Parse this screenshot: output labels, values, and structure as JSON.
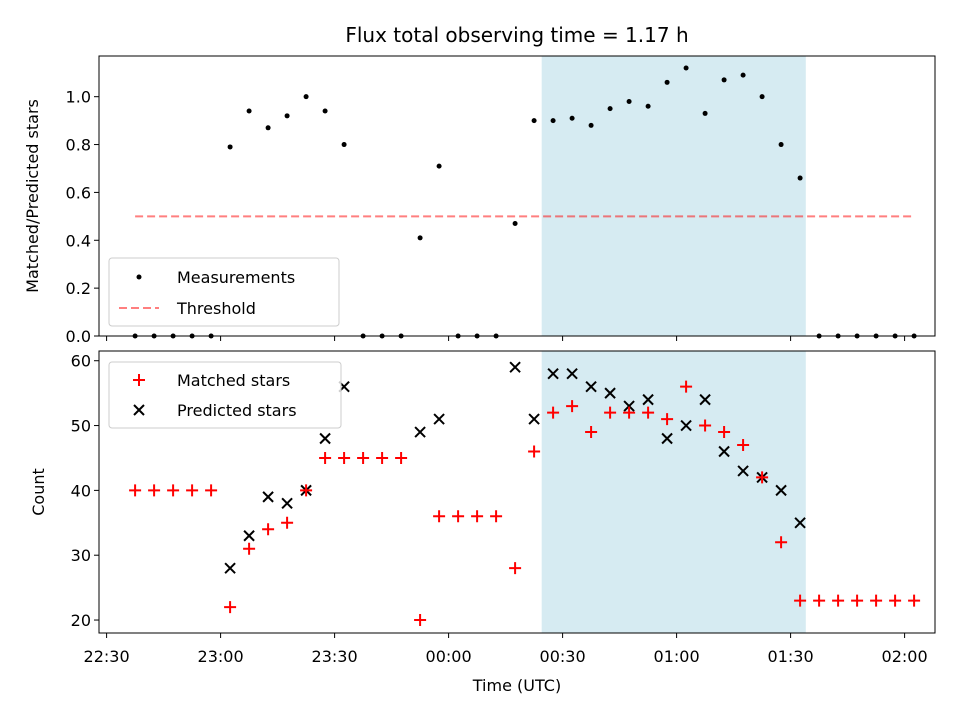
{
  "chart_data": {
    "title": "Flux total observing time = 1.17 h",
    "xlabel": "Time (UTC)",
    "x_tick_labels": [
      "22:30",
      "23:00",
      "23:30",
      "00:00",
      "00:30",
      "01:00",
      "01:30",
      "02:00"
    ],
    "x_tick_minutes": [
      0,
      30,
      60,
      90,
      120,
      150,
      180,
      210
    ],
    "xlim_minutes": [
      -2,
      218
    ],
    "highlight_span_minutes": [
      114.5,
      184
    ],
    "colors": {
      "highlight": "#add8e6",
      "measurement": "#000000",
      "threshold": "#ff0000",
      "matched": "#ff0000",
      "predicted": "#000000"
    },
    "panels": [
      {
        "type": "scatter",
        "ylabel": "Matched/Predicted stars",
        "ylim": [
          0,
          1.17
        ],
        "y_ticks": [
          0.0,
          0.2,
          0.4,
          0.6,
          0.8,
          1.0
        ],
        "y_tick_labels": [
          "0.0",
          "0.2",
          "0.4",
          "0.6",
          "0.8",
          "1.0"
        ],
        "series": [
          {
            "name": "Measurements",
            "marker": "dot",
            "x": [
              7.5,
              12.5,
              17.5,
              22.5,
              27.5,
              32.5,
              37.5,
              42.5,
              47.5,
              52.5,
              57.5,
              62.5,
              67.5,
              72.5,
              77.5,
              82.5,
              87.5,
              92.5,
              97.5,
              102.5,
              107.5,
              112.5,
              117.5,
              122.5,
              127.5,
              132.5,
              137.5,
              142.5,
              147.5,
              152.5,
              157.5,
              162.5,
              167.5,
              172.5,
              177.5,
              182.5,
              187.5,
              192.5,
              197.5,
              202.5,
              207.5,
              212.5
            ],
            "y": [
              0,
              0,
              0,
              0,
              0,
              0.79,
              0.94,
              0.87,
              0.92,
              1.0,
              0.94,
              0.8,
              0,
              0,
              0,
              0.41,
              0.71,
              0,
              0,
              0,
              0.47,
              0.9,
              0.9,
              0.91,
              0.88,
              0.95,
              0.98,
              0.96,
              1.06,
              1.12,
              0.93,
              1.07,
              1.09,
              1.0,
              0.8,
              0.66,
              0,
              0,
              0,
              0,
              0,
              0
            ]
          },
          {
            "name": "Threshold",
            "marker": "dashed-line",
            "x": [
              7.5,
              212.5
            ],
            "y": [
              0.5,
              0.5
            ]
          }
        ],
        "legend": "lower-left"
      },
      {
        "type": "scatter",
        "ylabel": "Count",
        "ylim": [
          18,
          61.5
        ],
        "y_ticks": [
          20,
          30,
          40,
          50,
          60
        ],
        "y_tick_labels": [
          "20",
          "30",
          "40",
          "50",
          "60"
        ],
        "series": [
          {
            "name": "Matched stars",
            "marker": "plus",
            "x": [
              7.5,
              12.5,
              17.5,
              22.5,
              27.5,
              32.5,
              37.5,
              42.5,
              47.5,
              52.5,
              57.5,
              62.5,
              67.5,
              72.5,
              77.5,
              82.5,
              87.5,
              92.5,
              97.5,
              102.5,
              107.5,
              112.5,
              117.5,
              122.5,
              127.5,
              132.5,
              137.5,
              142.5,
              147.5,
              152.5,
              157.5,
              162.5,
              167.5,
              172.5,
              177.5,
              182.5,
              187.5,
              192.5,
              197.5,
              202.5,
              207.5,
              212.5
            ],
            "y": [
              40,
              40,
              40,
              40,
              40,
              22,
              31,
              34,
              35,
              40,
              45,
              45,
              45,
              45,
              45,
              20,
              36,
              36,
              36,
              36,
              28,
              46,
              52,
              53,
              49,
              52,
              52,
              52,
              51,
              56,
              50,
              49,
              47,
              42,
              32,
              23,
              23,
              23,
              23,
              23,
              23,
              23
            ]
          },
          {
            "name": "Predicted stars",
            "marker": "x",
            "x": [
              32.5,
              37.5,
              42.5,
              47.5,
              52.5,
              57.5,
              62.5,
              82.5,
              87.5,
              107.5,
              112.5,
              117.5,
              122.5,
              127.5,
              132.5,
              137.5,
              142.5,
              147.5,
              152.5,
              157.5,
              162.5,
              167.5,
              172.5,
              177.5,
              182.5
            ],
            "y": [
              28,
              33,
              39,
              38,
              40,
              48,
              56,
              49,
              51,
              59,
              51,
              58,
              58,
              56,
              55,
              53,
              54,
              48,
              50,
              54,
              46,
              43,
              42,
              40,
              35
            ]
          }
        ],
        "legend": "upper-left"
      }
    ]
  }
}
